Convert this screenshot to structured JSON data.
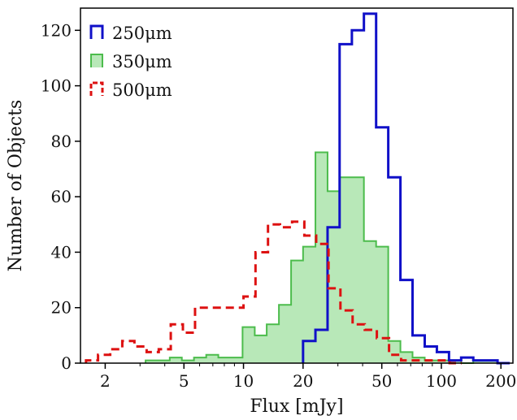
{
  "chart_data": {
    "type": "histogram",
    "xlabel": "Flux [mJy]",
    "ylabel": "Number of Objects",
    "x_scale": "log",
    "xlim": [
      1.5,
      230
    ],
    "ylim": [
      0,
      128
    ],
    "x_ticks": [
      2,
      5,
      10,
      20,
      50,
      100,
      200
    ],
    "x_tick_labels": [
      "2",
      "5",
      "10",
      "20",
      "50",
      "100",
      "200"
    ],
    "y_ticks": [
      0,
      20,
      40,
      60,
      80,
      100,
      120
    ],
    "y_tick_labels": [
      "0",
      "20",
      "40",
      "60",
      "80",
      "100",
      "120"
    ],
    "grid": false,
    "legend_position": "top-left",
    "series": [
      {
        "name": "250μm",
        "style": "step",
        "color": "#1010c8",
        "bin_edges": [
          20,
          23.1,
          26.6,
          30.6,
          35.3,
          40.6,
          46.8,
          53.9,
          62.1,
          71.5,
          82.4,
          94.9,
          109.3,
          125.9,
          145,
          167,
          192.3,
          221.5
        ],
        "counts": [
          8,
          12,
          49,
          115,
          120,
          126,
          85,
          67,
          30,
          10,
          6,
          4,
          1,
          2,
          1,
          1,
          0
        ]
      },
      {
        "name": "350μm",
        "style": "filled",
        "color": "#4cbc4c",
        "fill": "#b8e8b8",
        "bin_edges": [
          3.2,
          3.68,
          4.24,
          4.88,
          5.62,
          6.48,
          7.46,
          8.59,
          9.89,
          11.4,
          13.1,
          15.1,
          17.4,
          20.0,
          23.1,
          26.6,
          30.6,
          35.3,
          40.6,
          46.8,
          53.9,
          62.1,
          71.5,
          82.4,
          94.9,
          109.3,
          125.9,
          145,
          167,
          192.3
        ],
        "counts": [
          1,
          1,
          2,
          1,
          2,
          3,
          2,
          2,
          13,
          10,
          14,
          21,
          37,
          42,
          76,
          62,
          67,
          67,
          44,
          42,
          8,
          4,
          2,
          1,
          1,
          1,
          0,
          1,
          1
        ]
      },
      {
        "name": "500μm",
        "style": "dashed",
        "color": "#dd1111",
        "bin_edges": [
          1.6,
          1.84,
          2.12,
          2.44,
          2.81,
          3.24,
          3.73,
          4.29,
          4.94,
          5.69,
          6.55,
          7.55,
          8.69,
          10.0,
          11.5,
          13.3,
          15.3,
          17.6,
          20.3,
          23.3,
          26.9,
          30.9,
          35.6,
          41.0,
          47.2,
          54.4,
          62.6,
          72.1,
          83.0,
          95.6,
          110.1,
          126.8
        ],
        "counts": [
          1,
          3,
          5,
          8,
          6,
          4,
          5,
          14,
          11,
          20,
          20,
          20,
          20,
          24,
          40,
          50,
          49,
          51,
          46,
          43,
          27,
          19,
          14,
          12,
          9,
          3,
          1,
          1,
          1,
          1,
          0
        ]
      }
    ]
  }
}
